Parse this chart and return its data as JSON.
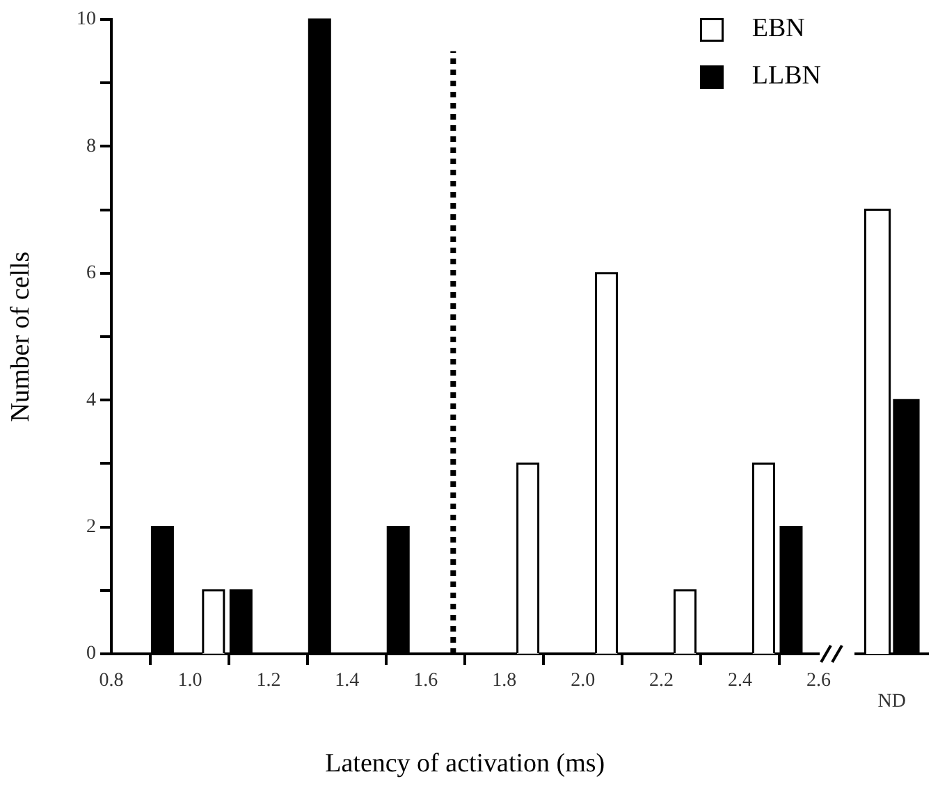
{
  "chart_data": [
    {
      "type": "bar",
      "xlabel": "Latency of activation (ms)",
      "ylabel": "Number of cells",
      "x": [
        0.93,
        1.06,
        1.13,
        1.33,
        1.53,
        1.86,
        2.06,
        2.26,
        2.46,
        2.53
      ],
      "xlim": [
        0.8,
        2.6
      ],
      "xticks": [
        0.8,
        {
          "value": 1,
          "label": "1.0"
        },
        1.2,
        1.4,
        1.6,
        1.8,
        {
          "value": 2,
          "label": "2.0"
        },
        2.2,
        2.4,
        2.6
      ],
      "ylim": [
        0,
        10
      ],
      "yticks": [
        0,
        {
          "value": 1,
          "label": null
        },
        2,
        {
          "value": 3,
          "label": null
        },
        4,
        {
          "value": 5,
          "label": null
        },
        6,
        {
          "value": 7,
          "label": null
        },
        8,
        {
          "value": 9,
          "label": null
        },
        10
      ],
      "series": [
        {
          "name": "EBN",
          "color": "#ffffff",
          "values": [
            null,
            1,
            null,
            null,
            null,
            3,
            6,
            1,
            3,
            null
          ]
        },
        {
          "name": "LLBN",
          "color": "#000000",
          "values": [
            2,
            null,
            1,
            10,
            2,
            null,
            null,
            null,
            null,
            2
          ]
        }
      ],
      "ref_lines": [
        {
          "axis": "x",
          "value": 1.67,
          "line_style": "dotted",
          "color": "#000000"
        }
      ],
      "legend": "top right",
      "grid": false
    },
    {
      "type": "bar",
      "categories": [
        "ND"
      ],
      "ylim": [
        0,
        10
      ],
      "tick_labels": "x",
      "series": [
        {
          "color": "#ffffff",
          "values": [
            7
          ]
        },
        {
          "color": "#000000",
          "values": [
            4
          ]
        }
      ],
      "legend": false,
      "grid": false
    }
  ]
}
